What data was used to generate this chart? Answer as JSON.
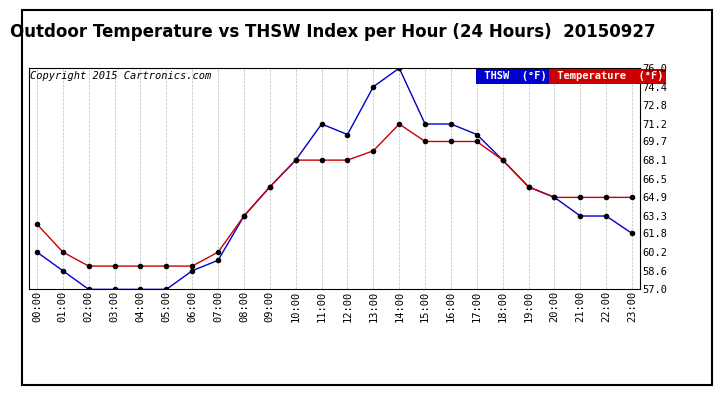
{
  "title": "Outdoor Temperature vs THSW Index per Hour (24 Hours)  20150927",
  "copyright": "Copyright 2015 Cartronics.com",
  "hours": [
    "00:00",
    "01:00",
    "02:00",
    "03:00",
    "04:00",
    "05:00",
    "06:00",
    "07:00",
    "08:00",
    "09:00",
    "10:00",
    "11:00",
    "12:00",
    "13:00",
    "14:00",
    "15:00",
    "16:00",
    "17:00",
    "18:00",
    "19:00",
    "20:00",
    "21:00",
    "22:00",
    "23:00"
  ],
  "thsw": [
    60.2,
    58.6,
    57.0,
    57.0,
    57.0,
    57.0,
    58.6,
    59.5,
    63.3,
    65.8,
    68.1,
    71.2,
    70.3,
    74.4,
    76.0,
    71.2,
    71.2,
    70.3,
    68.1,
    65.8,
    64.9,
    63.3,
    63.3,
    61.8
  ],
  "temperature": [
    62.6,
    60.2,
    59.0,
    59.0,
    59.0,
    59.0,
    59.0,
    60.2,
    63.3,
    65.8,
    68.1,
    68.1,
    68.1,
    68.9,
    71.2,
    69.7,
    69.7,
    69.7,
    68.1,
    65.8,
    64.9,
    64.9,
    64.9,
    64.9
  ],
  "thsw_color": "#0000cc",
  "temp_color": "#cc0000",
  "marker_color": "#000000",
  "ylim_min": 57.0,
  "ylim_max": 76.0,
  "yticks": [
    57.0,
    58.6,
    60.2,
    61.8,
    63.3,
    64.9,
    66.5,
    68.1,
    69.7,
    71.2,
    72.8,
    74.4,
    76.0
  ],
  "bg_color": "#ffffff",
  "grid_color": "#bbbbbb",
  "legend_thsw_bg": "#0000cc",
  "legend_temp_bg": "#cc0000",
  "title_fontsize": 12,
  "copyright_fontsize": 7.5,
  "tick_fontsize": 7.5
}
